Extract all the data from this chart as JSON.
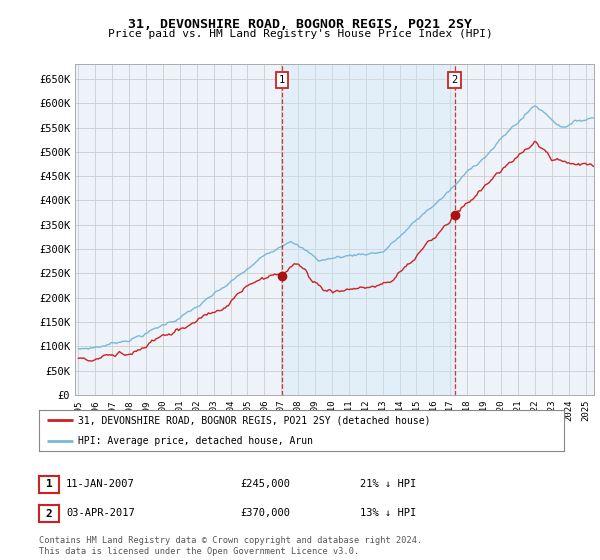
{
  "title": "31, DEVONSHIRE ROAD, BOGNOR REGIS, PO21 2SY",
  "subtitle": "Price paid vs. HM Land Registry's House Price Index (HPI)",
  "ylabel_ticks": [
    "£0",
    "£50K",
    "£100K",
    "£150K",
    "£200K",
    "£250K",
    "£300K",
    "£350K",
    "£400K",
    "£450K",
    "£500K",
    "£550K",
    "£600K",
    "£650K"
  ],
  "ytick_values": [
    0,
    50000,
    100000,
    150000,
    200000,
    250000,
    300000,
    350000,
    400000,
    450000,
    500000,
    550000,
    600000,
    650000
  ],
  "xlim": [
    1994.8,
    2025.5
  ],
  "ylim": [
    0,
    680000
  ],
  "sale1_x": 2007.03,
  "sale1_y": 245000,
  "sale1_label": "1",
  "sale1_date": "11-JAN-2007",
  "sale1_price": "£245,000",
  "sale1_pct": "21% ↓ HPI",
  "sale2_x": 2017.25,
  "sale2_y": 370000,
  "sale2_label": "2",
  "sale2_date": "03-APR-2017",
  "sale2_price": "£370,000",
  "sale2_pct": "13% ↓ HPI",
  "hpi_color": "#7ab8d9",
  "price_color": "#cc2222",
  "marker_color": "#aa1111",
  "shade_color": "#d0e8f5",
  "legend_label1": "31, DEVONSHIRE ROAD, BOGNOR REGIS, PO21 2SY (detached house)",
  "legend_label2": "HPI: Average price, detached house, Arun",
  "footnote": "Contains HM Land Registry data © Crown copyright and database right 2024.\nThis data is licensed under the Open Government Licence v3.0.",
  "bg_color": "#ffffff",
  "grid_color": "#cccccc",
  "plot_bg": "#eef3fa"
}
